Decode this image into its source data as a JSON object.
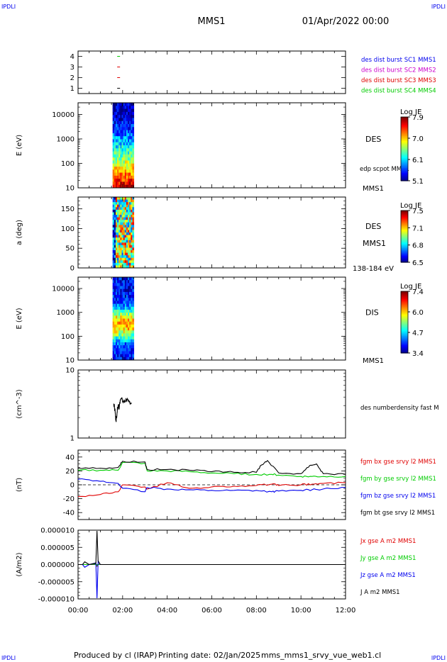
{
  "corner_tags": {
    "tl": "IPDLI",
    "tr": "IPDLI",
    "bl": "IPDLI",
    "br": "IPDLI"
  },
  "header": {
    "spacecraft": "MMS1",
    "date": "01/Apr/2022 00:00"
  },
  "footer": {
    "produced_by": "Produced by cl (IRAP)",
    "printing_date": "Printing date: 02/Jan/2025",
    "filename": "mms_mms1_srvy_vue_web1.cl"
  },
  "colors": {
    "black": "#000000",
    "red": "#e00000",
    "green": "#00cc00",
    "blue": "#0000ee",
    "magenta": "#cc00cc"
  },
  "chart_data": [
    {
      "type": "scatter",
      "name": "burst-intervals",
      "ylabel": "",
      "ylim": [
        0.5,
        4.5
      ],
      "yticks": [
        1,
        2,
        3,
        4
      ],
      "xlim_hours": [
        0,
        12
      ],
      "points": [
        {
          "x": 1.82,
          "y": 4,
          "color": "#00cc00"
        },
        {
          "x": 1.82,
          "y": 3,
          "color": "#e00000"
        },
        {
          "x": 1.82,
          "y": 2,
          "color": "#e00000"
        },
        {
          "x": 1.82,
          "y": 1,
          "color": "#000000"
        }
      ],
      "legend": [
        {
          "text": "des dist burst SC1 MMS1",
          "color": "#0000ee"
        },
        {
          "text": "des dist burst SC2 MMS2",
          "color": "#cc00cc"
        },
        {
          "text": "des dist burst SC3 MMS3",
          "color": "#e00000"
        },
        {
          "text": "des dist burst SC4 MMS4",
          "color": "#00cc00"
        }
      ]
    },
    {
      "type": "heatmap",
      "name": "des-energy-spectrogram",
      "ylabel": "E (eV)",
      "yscale": "log",
      "ylim": [
        10,
        30000
      ],
      "ytick_labels": [
        "10",
        "100",
        "1000",
        "10000"
      ],
      "x_range_hours": [
        1.55,
        2.5
      ],
      "side_label": "DES",
      "sub_label": "edp scpot MMS1",
      "bottom_label": "MMS1",
      "colorbar": {
        "title": "Log JE",
        "ticks": [
          "7.9",
          "7.0",
          "6.1",
          "5.1"
        ],
        "range": [
          5.1,
          7.9
        ]
      }
    },
    {
      "type": "heatmap",
      "name": "des-pitch-angle",
      "ylabel": "a (deg)",
      "ylim": [
        0,
        180
      ],
      "ytick_labels": [
        "0",
        "50",
        "100",
        "150"
      ],
      "x_range_hours": [
        1.55,
        2.5
      ],
      "side_label": "DES",
      "sub_label": "MMS1",
      "bottom_label": "138-184 eV",
      "colorbar": {
        "title": "Log JE",
        "ticks": [
          "7.5",
          "7.1",
          "6.8",
          "6.5"
        ],
        "range": [
          6.5,
          7.5
        ]
      }
    },
    {
      "type": "heatmap",
      "name": "dis-energy-spectrogram",
      "ylabel": "E (eV)",
      "yscale": "log",
      "ylim": [
        10,
        30000
      ],
      "ytick_labels": [
        "10",
        "100",
        "1000",
        "10000"
      ],
      "x_range_hours": [
        1.55,
        2.5
      ],
      "side_label": "DIS",
      "bottom_label": "MMS1",
      "colorbar": {
        "title": "Log JE",
        "ticks": [
          "7.4",
          "6.0",
          "4.7",
          "3.4"
        ],
        "range": [
          3.4,
          7.4
        ]
      }
    },
    {
      "type": "line",
      "name": "des-number-density",
      "ylabel": "(cm^-3)",
      "yscale": "log",
      "ylim": [
        1,
        10
      ],
      "ytick_labels": [
        "1",
        "10"
      ],
      "series": [
        {
          "name": "des numberdensity fast M",
          "color": "#000000",
          "x": [
            1.6,
            1.65,
            1.7,
            1.75,
            1.8,
            1.85,
            1.9,
            1.95,
            2.0,
            2.1,
            2.2,
            2.3,
            2.4
          ],
          "y": [
            3.2,
            2.6,
            1.8,
            2.4,
            3.1,
            2.8,
            3.6,
            3.9,
            3.4,
            3.5,
            3.7,
            3.4,
            3.3
          ]
        }
      ]
    },
    {
      "type": "line",
      "name": "magnetic-field",
      "ylabel": "(nT)",
      "ylim": [
        -50,
        50
      ],
      "ytick_labels": [
        "40",
        "20",
        "0",
        "-20",
        "-40"
      ],
      "series": [
        {
          "name": "fgm bx gse srvy l2 MMS1",
          "color": "#e00000",
          "x": [
            0,
            1,
            1.8,
            2.0,
            3.0,
            3.1,
            4.0,
            5,
            6,
            7,
            8,
            8.7,
            9,
            10,
            10.5,
            11,
            12
          ],
          "y": [
            -17,
            -14,
            -10,
            0,
            -3,
            -6,
            3,
            -5,
            -3,
            -2,
            -1,
            1,
            -1,
            0,
            1,
            2,
            3
          ]
        },
        {
          "name": "fgm by gse srvy l2 MMS1",
          "color": "#00cc00",
          "x": [
            0,
            1,
            1.8,
            2.0,
            3.0,
            3.1,
            4.0,
            5,
            6,
            7,
            8,
            8.7,
            9,
            10,
            10.5,
            11,
            12
          ],
          "y": [
            21,
            21,
            21,
            32,
            31,
            20,
            20,
            19,
            17,
            16,
            15,
            15,
            14,
            12,
            12,
            12,
            12
          ]
        },
        {
          "name": "fgm bz gse srvy l2 MMS1",
          "color": "#0000ee",
          "x": [
            0,
            1,
            1.8,
            2.0,
            3.0,
            3.1,
            4.0,
            5,
            6,
            7,
            8,
            8.7,
            9,
            10,
            10.5,
            11,
            12
          ],
          "y": [
            8,
            5,
            2,
            -5,
            -10,
            -4,
            -6,
            -7,
            -8,
            -8,
            -8,
            -10,
            -9,
            -8,
            -7,
            -6,
            -4
          ]
        },
        {
          "name": "fgm bt gse srvy l2 MMS1",
          "color": "#000000",
          "x": [
            0,
            1,
            1.8,
            2.0,
            3.0,
            3.1,
            4.0,
            5,
            6,
            7,
            8,
            8.2,
            8.5,
            9,
            10,
            10.4,
            10.7,
            11,
            12
          ],
          "y": [
            24,
            24,
            25,
            34,
            33,
            22,
            22,
            21,
            19,
            18,
            18,
            28,
            35,
            17,
            16,
            28,
            30,
            16,
            15
          ]
        }
      ]
    },
    {
      "type": "line",
      "name": "current-density",
      "ylabel": "(A/m2)",
      "ylim": [
        -1e-05,
        1e-05
      ],
      "ytick_labels": [
        "0.000010",
        "0.000005",
        "0.000000",
        "-0.000005",
        "-0.000010"
      ],
      "xtick_labels": [
        "00:00",
        "02:00",
        "04:00",
        "06:00",
        "08:00",
        "10:00",
        "12:00"
      ],
      "series": [
        {
          "name": "Jx gse A m2 MMS1",
          "color": "#e00000",
          "x": [
            0.2,
            0.5,
            0.8,
            0.85,
            0.9,
            1.0,
            1.5,
            2.0,
            3.0,
            12.0
          ],
          "y": [
            0,
            0,
            3e-07,
            -5e-07,
            2e-07,
            0,
            0,
            0,
            0,
            0
          ]
        },
        {
          "name": "Jy gse A m2 MMS1",
          "color": "#00cc00",
          "x": [
            0.2,
            0.5,
            0.8,
            0.85,
            0.9,
            1.0,
            1.5,
            12.0
          ],
          "y": [
            0,
            0,
            2e-07,
            -3e-07,
            1e-07,
            0,
            0,
            0
          ]
        },
        {
          "name": "Jz gse A m2 MMS1",
          "color": "#0000ee",
          "x": [
            0.2,
            0.3,
            0.5,
            0.8,
            0.85,
            0.9,
            1.0,
            1.5,
            12.0
          ],
          "y": [
            0,
            -8e-07,
            0,
            5e-07,
            -9.8e-06,
            1e-06,
            0,
            0,
            0
          ]
        },
        {
          "name": "J A m2 MMS1",
          "color": "#000000",
          "x": [
            0.2,
            0.3,
            0.5,
            0.8,
            0.85,
            0.9,
            1.0,
            1.5,
            12.0
          ],
          "y": [
            0,
            8e-07,
            0,
            4e-07,
            9.8e-06,
            1e-06,
            0,
            0,
            0
          ]
        }
      ]
    }
  ]
}
